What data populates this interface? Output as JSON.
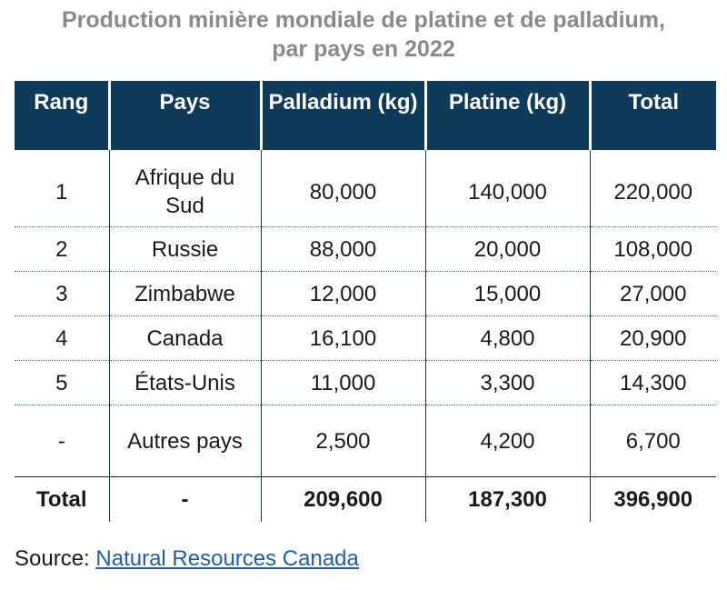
{
  "title_line1": "Production minière mondiale de platine et de palladium,",
  "title_line2": "par pays en 2022",
  "chart_data": {
    "type": "table",
    "columns": [
      "Rang",
      "Pays",
      "Palladium (kg)",
      "Platine (kg)",
      "Total"
    ],
    "rows": [
      [
        "1",
        "Afrique du Sud",
        "80,000",
        "140,000",
        "220,000"
      ],
      [
        "2",
        "Russie",
        "88,000",
        "20,000",
        "108,000"
      ],
      [
        "3",
        "Zimbabwe",
        "12,000",
        "15,000",
        "27,000"
      ],
      [
        "4",
        "Canada",
        "16,100",
        "4,800",
        "20,900"
      ],
      [
        "5",
        "États-Unis",
        "11,000",
        "3,300",
        "14,300"
      ],
      [
        "-",
        "Autres pays",
        "2,500",
        "4,200",
        "6,700"
      ]
    ],
    "total_row": [
      "Total",
      "-",
      "209,600",
      "187,300",
      "396,900"
    ]
  },
  "header_colors": {
    "background": "#0e3a5c",
    "text": "#ffffff"
  },
  "source": {
    "label": "Source:",
    "link_text": "Natural Resources Canada",
    "link_color": "#1f5fa6"
  }
}
